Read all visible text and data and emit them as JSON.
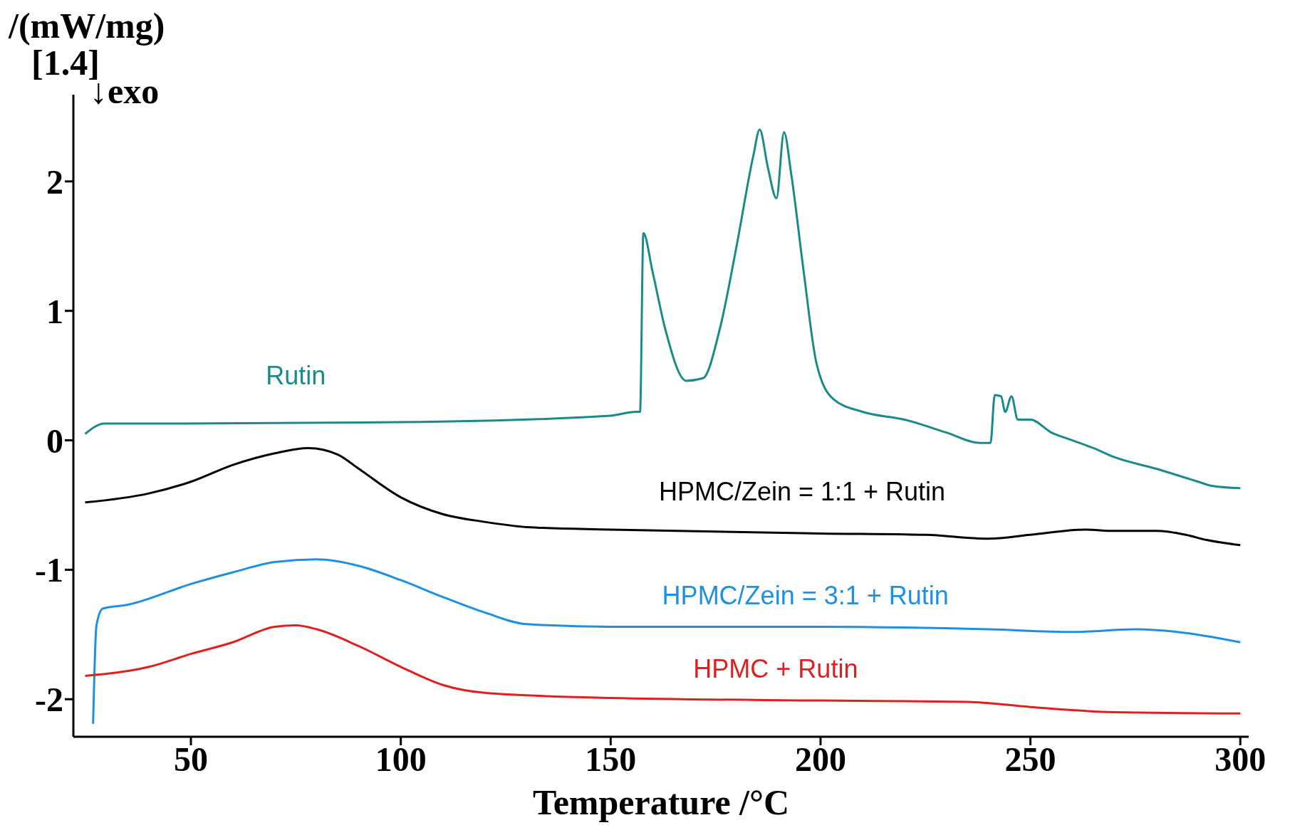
{
  "chart_data": {
    "type": "line",
    "ylabel": "/(mW/mg)",
    "xlabel": "Temperature /°C",
    "annotations": [
      "[1.4]",
      "↓exo"
    ],
    "xlim": [
      22,
      302
    ],
    "xticks": [
      50,
      100,
      150,
      200,
      250,
      300
    ],
    "ylim": [
      -2.29,
      2.67
    ],
    "yticks": [
      -2,
      -1,
      0,
      1,
      2
    ],
    "marker": "none",
    "line_style": "solid",
    "series": [
      {
        "name": "Rutin",
        "color": "#1a8a8a",
        "x": [
          24.8,
          29.4,
          40,
          100,
          150,
          156,
          157,
          157.8,
          160,
          163,
          168,
          172,
          176,
          180,
          184,
          185.5,
          187.5,
          189.5,
          191.3,
          193,
          196,
          199,
          203,
          210,
          220,
          230,
          238,
          240.5,
          241.5,
          243,
          244,
          245.5,
          247,
          250,
          255,
          260,
          265,
          270,
          280,
          287,
          290,
          293,
          300
        ],
        "values": [
          0.05,
          0.13,
          0.13,
          0.14,
          0.19,
          0.22,
          0.22,
          1.6,
          1.3,
          0.86,
          0.46,
          0.48,
          0.86,
          1.5,
          2.2,
          2.4,
          2.1,
          1.87,
          2.38,
          2.06,
          1.3,
          0.6,
          0.32,
          0.22,
          0.16,
          0.06,
          -0.02,
          -0.02,
          0.35,
          0.34,
          0.22,
          0.34,
          0.16,
          0.16,
          0.06,
          0,
          -0.06,
          -0.13,
          -0.22,
          -0.29,
          -0.32,
          -0.35,
          -0.37
        ]
      },
      {
        "name": "HPMC/Zein = 1:1 + Rutin",
        "color": "#000000",
        "x": [
          24.8,
          40,
          50,
          60,
          70,
          78,
          85,
          90,
          100,
          110,
          120,
          130,
          150,
          200,
          225,
          240,
          250,
          263,
          270,
          280,
          287,
          292,
          300
        ],
        "values": [
          -0.48,
          -0.41,
          -0.32,
          -0.19,
          -0.1,
          -0.06,
          -0.11,
          -0.22,
          -0.44,
          -0.57,
          -0.63,
          -0.67,
          -0.69,
          -0.72,
          -0.73,
          -0.76,
          -0.73,
          -0.69,
          -0.7,
          -0.7,
          -0.73,
          -0.77,
          -0.81
        ]
      },
      {
        "name": "HPMC/Zein = 3:1 + Rutin",
        "color": "#1e90e0",
        "x": [
          26.7,
          27.5,
          29,
          35,
          50,
          60,
          70,
          80,
          90,
          100,
          110,
          120,
          130,
          150,
          200,
          240,
          260,
          275,
          285,
          300
        ],
        "values": [
          -2.19,
          -1.43,
          -1.3,
          -1.27,
          -1.11,
          -1.02,
          -0.94,
          -0.92,
          -0.97,
          -1.08,
          -1.21,
          -1.33,
          -1.42,
          -1.44,
          -1.44,
          -1.46,
          -1.48,
          -1.46,
          -1.48,
          -1.56
        ]
      },
      {
        "name": "HPMC + Rutin",
        "color": "#e02020",
        "x": [
          24.8,
          40,
          50,
          60,
          70,
          75,
          80,
          90,
          100,
          110,
          120,
          150,
          200,
          235,
          250,
          270,
          300
        ],
        "values": [
          -1.82,
          -1.75,
          -1.65,
          -1.56,
          -1.44,
          -1.43,
          -1.46,
          -1.59,
          -1.75,
          -1.89,
          -1.95,
          -1.99,
          -2.01,
          -2.02,
          -2.06,
          -2.1,
          -2.11
        ]
      }
    ]
  }
}
